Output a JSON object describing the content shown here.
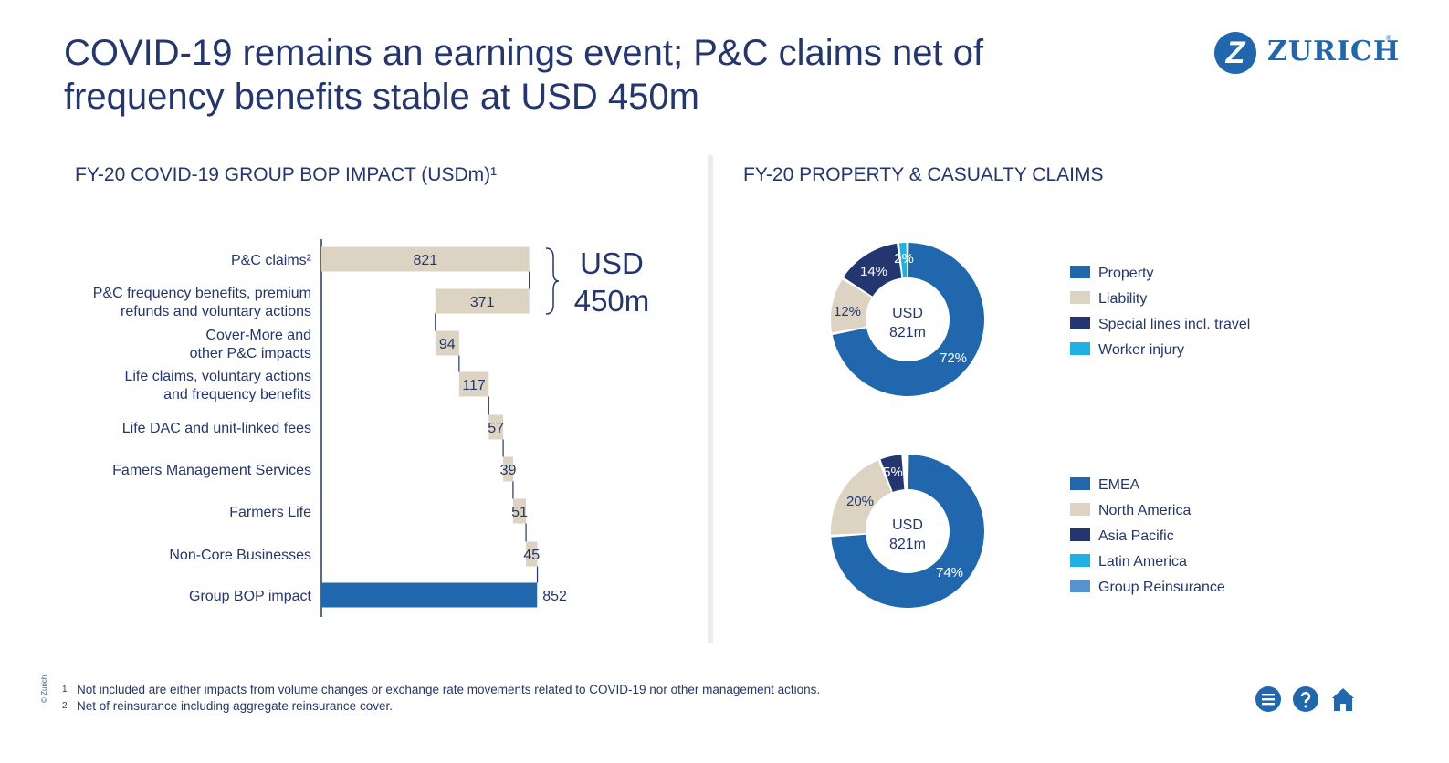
{
  "header": {
    "title": "COVID-19 remains an earnings event; P&C claims net of frequency benefits stable at USD 450m",
    "logo_mark": "Z",
    "logo_text": "ZURICH",
    "logo_reg": "®"
  },
  "left_section": {
    "title": "FY-20 COVID-19 GROUP BOP IMPACT (USDm)¹"
  },
  "right_section": {
    "title": "FY-20 PROPERTY & CASUALTY CLAIMS"
  },
  "colors": {
    "navy": "#23366f",
    "blue": "#2167ae",
    "beige": "#ddd3c2",
    "cyan": "#1fb1e6",
    "dark_navy": "#23366f",
    "light_blue": "#5495cf"
  },
  "chart_data": [
    {
      "type": "bar",
      "subtype": "waterfall",
      "title": "FY-20 COVID-19 GROUP BOP IMPACT (USDm)¹",
      "categories": [
        [
          "P&C claims²"
        ],
        [
          "P&C frequency benefits, premium",
          "refunds and voluntary actions"
        ],
        [
          "Cover-More and",
          "other P&C impacts"
        ],
        [
          "Life claims, voluntary actions",
          "and frequency benefits"
        ],
        [
          "Life DAC and unit-linked fees"
        ],
        [
          "Famers Management Services"
        ],
        [
          "Farmers Life"
        ],
        [
          "Non-Core Businesses"
        ],
        [
          "Group BOP impact"
        ]
      ],
      "values": [
        821,
        -371,
        94,
        117,
        57,
        39,
        51,
        45,
        852
      ],
      "value_labels": [
        "821",
        "371",
        "94",
        "117",
        "57",
        "39",
        "51",
        "45",
        "852"
      ],
      "total_index": 8,
      "bracket_label": [
        "USD",
        "450m"
      ]
    },
    {
      "type": "pie",
      "subtype": "donut",
      "center_label": [
        "USD",
        "821m"
      ],
      "slices": [
        {
          "name": "Property",
          "value": 72,
          "label": "72%",
          "color": "#2167ae"
        },
        {
          "name": "Liability",
          "value": 12,
          "label": "12%",
          "color": "#ddd3c2"
        },
        {
          "name": "Special lines incl. travel",
          "value": 14,
          "label": "14%",
          "color": "#23366f"
        },
        {
          "name": "Worker injury",
          "value": 2,
          "label": "2%",
          "color": "#1fb1e6"
        }
      ],
      "legend": [
        {
          "name": "Property",
          "color": "#2167ae"
        },
        {
          "name": "Liability",
          "color": "#ddd3c2"
        },
        {
          "name": "Special lines incl. travel",
          "color": "#23366f"
        },
        {
          "name": "Worker injury",
          "color": "#1fb1e6"
        }
      ]
    },
    {
      "type": "pie",
      "subtype": "donut",
      "center_label": [
        "USD",
        "821m"
      ],
      "slices": [
        {
          "name": "EMEA",
          "value": 74,
          "label": "74%",
          "color": "#2167ae"
        },
        {
          "name": "North America",
          "value": 20,
          "label": "20%",
          "color": "#ddd3c2"
        },
        {
          "name": "Asia Pacific",
          "value": 5,
          "label": "5%",
          "color": "#23366f"
        },
        {
          "name": "Latin America",
          "value": 0.5,
          "label": "",
          "color": "#1fb1e6"
        },
        {
          "name": "Group Reinsurance",
          "value": 0.5,
          "label": "",
          "color": "#5495cf"
        }
      ],
      "legend": [
        {
          "name": "EMEA",
          "color": "#2167ae"
        },
        {
          "name": "North America",
          "color": "#ddd3c2"
        },
        {
          "name": "Asia Pacific",
          "color": "#23366f"
        },
        {
          "name": "Latin America",
          "color": "#1fb1e6"
        },
        {
          "name": "Group Reinsurance",
          "color": "#5495cf"
        }
      ]
    }
  ],
  "footnotes": [
    {
      "num": "1",
      "text": "Not included are either impacts from volume changes or exchange rate movements related to COVID-19 nor other management actions."
    },
    {
      "num": "2",
      "text": "Net of reinsurance including aggregate reinsurance cover."
    }
  ],
  "copyright": "© Zurich",
  "nav": {
    "icons": [
      "menu-icon",
      "help-icon",
      "home-icon"
    ]
  }
}
